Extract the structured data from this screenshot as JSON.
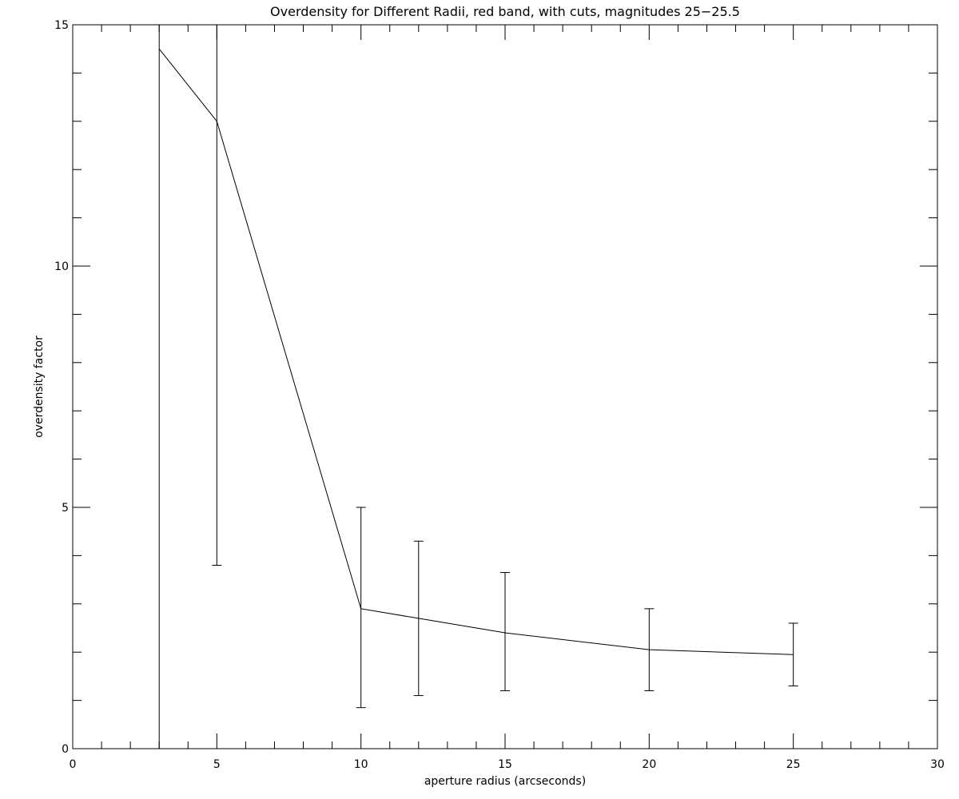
{
  "chart_data": {
    "type": "line",
    "title": "Overdensity for Different Radii, red band, with cuts, magnitudes 25−25.5",
    "xlabel": "aperture radius (arcseconds)",
    "ylabel": "overdensity factor",
    "xlim": [
      0,
      30
    ],
    "ylim": [
      0,
      15
    ],
    "x_ticks": [
      0,
      5,
      10,
      15,
      20,
      25,
      30
    ],
    "y_ticks": [
      0,
      5,
      10,
      15
    ],
    "x_tick_labels": [
      "0",
      "5",
      "10",
      "15",
      "20",
      "25",
      "30"
    ],
    "y_tick_labels": [
      "0",
      "5",
      "10",
      "15"
    ],
    "x_minor_step": 1,
    "y_minor_step": 1,
    "grid": false,
    "series": [
      {
        "x": [
          3,
          5,
          10,
          12,
          15,
          20,
          25
        ],
        "y": [
          14.5,
          13.0,
          2.9,
          2.7,
          2.4,
          2.05,
          1.95
        ],
        "y_err_low": [
          0.0,
          3.8,
          0.85,
          1.1,
          1.2,
          1.2,
          1.3
        ],
        "y_err_high": [
          15.0,
          15.0,
          5.0,
          4.3,
          3.65,
          2.9,
          2.6
        ]
      }
    ],
    "colors": {
      "line": "#000000",
      "axes": "#000000",
      "background": "#ffffff"
    }
  }
}
